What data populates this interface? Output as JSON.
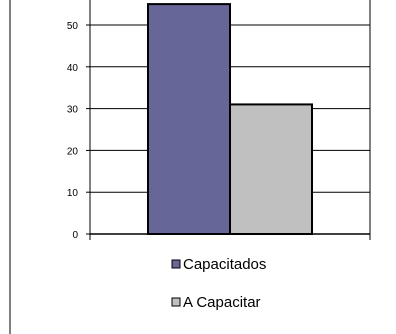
{
  "chart_data": {
    "type": "bar",
    "categories": [
      ""
    ],
    "series": [
      {
        "name": "Capacitados",
        "values": [
          55
        ],
        "color": "#666699"
      },
      {
        "name": "A Capacitar",
        "values": [
          31
        ],
        "color": "#c0c0c0"
      }
    ],
    "yticks": [
      0,
      10,
      20,
      30,
      40,
      50
    ],
    "ylim": [
      0,
      55
    ],
    "grid": true,
    "legend": "bottom"
  }
}
